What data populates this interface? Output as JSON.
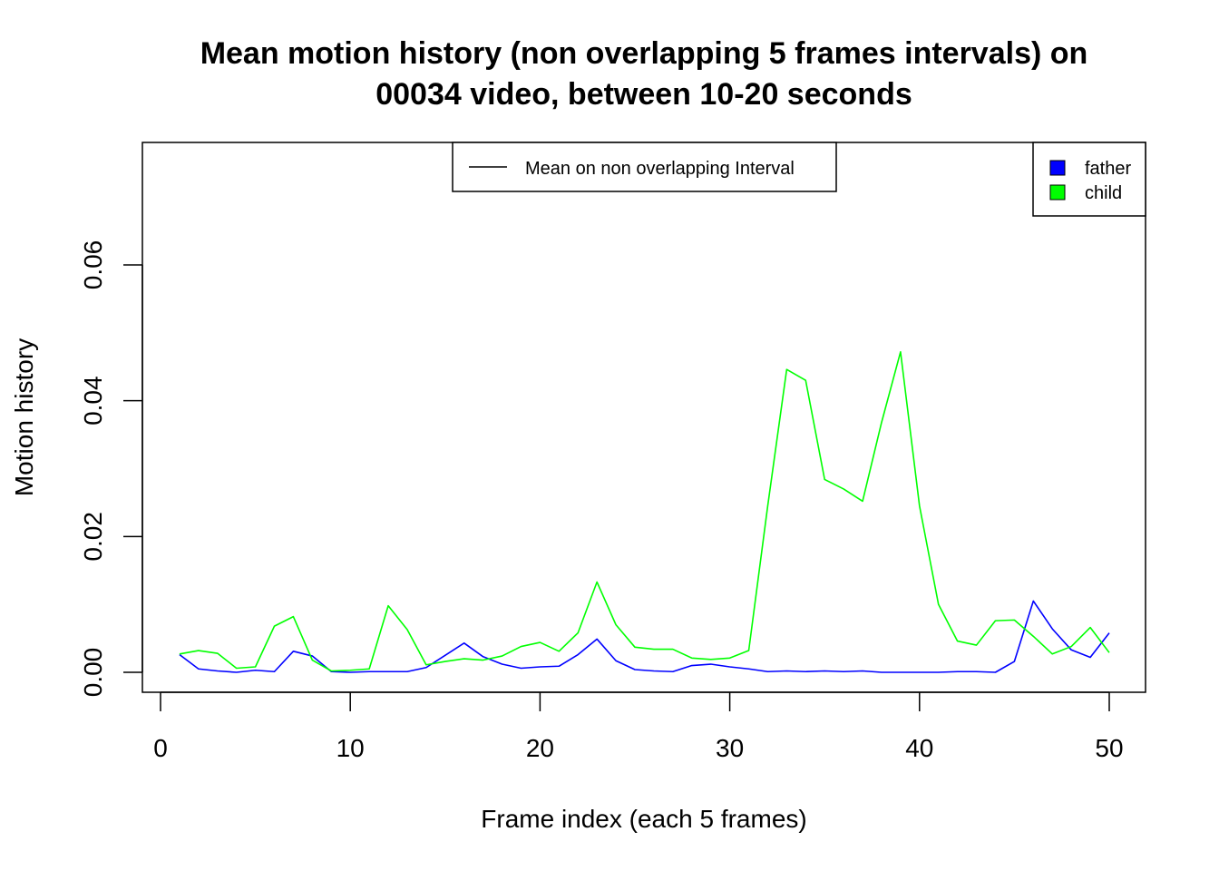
{
  "chart_data": {
    "type": "line",
    "title_line1": "Mean motion history (non overlapping 5 frames intervals) on",
    "title_line2": "00034 video, between 10-20 seconds",
    "xlabel": "Frame index (each 5 frames)",
    "ylabel": "Motion history",
    "xlim": [
      0,
      50
    ],
    "ylim": [
      0,
      0.075
    ],
    "x_ticks": [
      0,
      10,
      20,
      30,
      40,
      50
    ],
    "x_tick_labels": [
      "0",
      "10",
      "20",
      "30",
      "40",
      "50"
    ],
    "y_ticks": [
      0,
      0.02,
      0.04,
      0.06
    ],
    "y_tick_labels": [
      "0.00",
      "0.02",
      "0.04",
      "0.06"
    ],
    "grid": false,
    "x": [
      1,
      2,
      3,
      4,
      5,
      6,
      7,
      8,
      9,
      10,
      11,
      12,
      13,
      14,
      15,
      16,
      17,
      18,
      19,
      20,
      21,
      22,
      23,
      24,
      25,
      26,
      27,
      28,
      29,
      30,
      31,
      32,
      33,
      34,
      35,
      36,
      37,
      38,
      39,
      40,
      41,
      42,
      43,
      44,
      45,
      46,
      47,
      48,
      49,
      50
    ],
    "series": [
      {
        "name": "father",
        "color": "#0000FF",
        "values": [
          0.0026,
          0.0005,
          0.0002,
          0.0,
          0.0003,
          0.0001,
          0.0031,
          0.0024,
          0.0001,
          0.0,
          0.0001,
          0.0001,
          0.0001,
          0.0007,
          0.0025,
          0.0043,
          0.0023,
          0.0012,
          0.0006,
          0.0008,
          0.0009,
          0.0026,
          0.0049,
          0.0017,
          0.0004,
          0.0002,
          0.0001,
          0.001,
          0.0012,
          0.0008,
          0.0005,
          0.0001,
          0.0002,
          0.0001,
          0.0002,
          0.0001,
          0.0002,
          0.0,
          0.0,
          0.0,
          0.0,
          0.0001,
          0.0001,
          0.0,
          0.0016,
          0.0105,
          0.0064,
          0.0033,
          0.0022,
          0.0058
        ]
      },
      {
        "name": "child",
        "color": "#00FF00",
        "values": [
          0.0027,
          0.0032,
          0.0028,
          0.0006,
          0.0008,
          0.0068,
          0.0082,
          0.0018,
          0.0002,
          0.0003,
          0.0005,
          0.0098,
          0.0063,
          0.0011,
          0.0016,
          0.002,
          0.0018,
          0.0024,
          0.0038,
          0.0044,
          0.0031,
          0.0058,
          0.0133,
          0.007,
          0.0037,
          0.0034,
          0.0034,
          0.0021,
          0.0019,
          0.0021,
          0.0032,
          0.0245,
          0.0446,
          0.043,
          0.0284,
          0.027,
          0.0252,
          0.0368,
          0.0472,
          0.0245,
          0.01,
          0.0046,
          0.004,
          0.0076,
          0.0077,
          0.0053,
          0.0027,
          0.0038,
          0.0066,
          0.0029
        ]
      }
    ],
    "legend_line": {
      "label": "Mean on non overlapping Interval",
      "placement": "top-center"
    },
    "legend_colors": {
      "placement": "top-right",
      "items": [
        {
          "label": "father",
          "color": "#0000FF"
        },
        {
          "label": "child",
          "color": "#00FF00"
        }
      ]
    }
  }
}
